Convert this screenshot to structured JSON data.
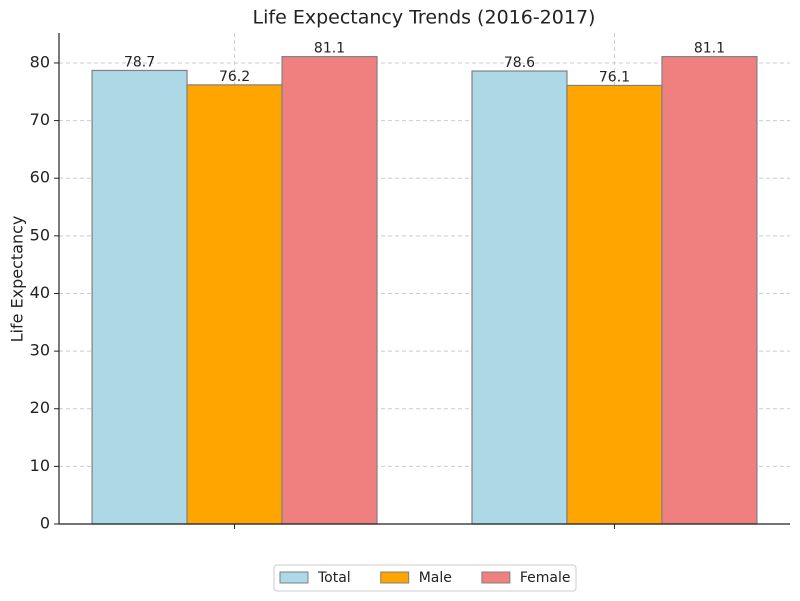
{
  "chart_data": {
    "type": "bar",
    "title": "Life Expectancy Trends (2016-2017)",
    "y_label": "Life Expectancy",
    "categories": [
      null,
      null
    ],
    "series": [
      {
        "name": "Total",
        "color": "#add8e6",
        "values": [
          78.7,
          78.6
        ]
      },
      {
        "name": "Male",
        "color": "#ffa500",
        "values": [
          76.2,
          76.1
        ]
      },
      {
        "name": "Female",
        "color": "#f08080",
        "values": [
          81.1,
          81.1
        ]
      }
    ],
    "ylim": [
      0,
      85.2
    ],
    "yticks": [
      0,
      10,
      20,
      30,
      40,
      50,
      60,
      70,
      80
    ],
    "grid": true,
    "legend": "bottom"
  }
}
